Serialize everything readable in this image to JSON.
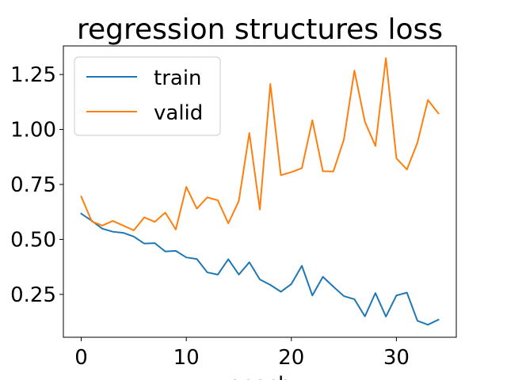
{
  "chart_data": {
    "type": "line",
    "title": "regression structures loss",
    "xlabel": "epoch",
    "ylabel": "",
    "xlim": [
      -1.7,
      35.7
    ],
    "ylim": [
      0.055,
      1.38
    ],
    "xticks": [
      0,
      10,
      20,
      30
    ],
    "xtick_labels": [
      "0",
      "10",
      "20",
      "30"
    ],
    "yticks": [
      0.25,
      0.5,
      0.75,
      1.0,
      1.25
    ],
    "ytick_labels": [
      "0.25",
      "0.50",
      "0.75",
      "1.00",
      "1.25"
    ],
    "grid": false,
    "legend_position": "upper left",
    "x": [
      0,
      1,
      2,
      3,
      4,
      5,
      6,
      7,
      8,
      9,
      10,
      11,
      12,
      13,
      14,
      15,
      16,
      17,
      18,
      19,
      20,
      21,
      22,
      23,
      24,
      25,
      26,
      27,
      28,
      29,
      30,
      31,
      32,
      33,
      34
    ],
    "series": [
      {
        "name": "train",
        "color": "#1f77b4",
        "values": [
          0.617,
          0.585,
          0.549,
          0.535,
          0.53,
          0.513,
          0.481,
          0.483,
          0.445,
          0.448,
          0.418,
          0.411,
          0.35,
          0.34,
          0.41,
          0.34,
          0.396,
          0.318,
          0.293,
          0.262,
          0.297,
          0.38,
          0.245,
          0.33,
          0.285,
          0.242,
          0.228,
          0.15,
          0.256,
          0.149,
          0.245,
          0.258,
          0.13,
          0.112,
          0.135
        ]
      },
      {
        "name": "valid",
        "color": "#ff7f0e",
        "values": [
          0.695,
          0.582,
          0.563,
          0.584,
          0.563,
          0.541,
          0.6,
          0.58,
          0.622,
          0.545,
          0.739,
          0.64,
          0.691,
          0.678,
          0.573,
          0.675,
          0.984,
          0.636,
          1.207,
          0.792,
          0.806,
          0.824,
          1.042,
          0.81,
          0.809,
          0.954,
          1.268,
          1.035,
          0.925,
          1.324,
          0.869,
          0.818,
          0.94,
          1.134,
          1.073
        ]
      }
    ]
  }
}
